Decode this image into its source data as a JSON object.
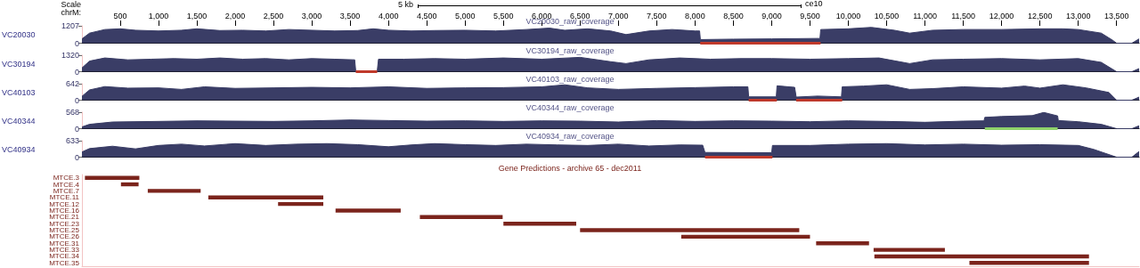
{
  "chart_data": [
    {
      "type": "area",
      "title": "VC20030_raw_coverage",
      "ylabel": "VC20030",
      "color": "#3a3d66",
      "xlim": [
        1,
        13794
      ],
      "ylim": [
        0,
        1207
      ],
      "yticks": [
        0,
        1207
      ],
      "xticks": [
        500,
        {
          "value": 1000,
          "label": "1,000"
        },
        {
          "value": 1500,
          "label": "1,500"
        },
        {
          "value": 2000,
          "label": "2,000"
        },
        {
          "value": 2500,
          "label": "2,500"
        },
        {
          "value": 3000,
          "label": "3,000"
        },
        {
          "value": 3500,
          "label": "3,500"
        },
        {
          "value": 4000,
          "label": "4,000"
        },
        {
          "value": 4500,
          "label": "4,500"
        },
        {
          "value": 5000,
          "label": "5,000"
        },
        {
          "value": 5500,
          "label": "5,500"
        },
        {
          "value": 6000,
          "label": "6,000"
        },
        {
          "value": 6500,
          "label": "6,500"
        },
        {
          "value": 7000,
          "label": "7,000"
        },
        {
          "value": 7500,
          "label": "7,500"
        },
        {
          "value": 8000,
          "label": "8,000"
        },
        {
          "value": 8500,
          "label": "8,500"
        },
        {
          "value": 9000,
          "label": "9,000"
        },
        {
          "value": 9500,
          "label": "9,500"
        },
        {
          "value": 10000,
          "label": "10,000"
        },
        {
          "value": 10500,
          "label": "10,500"
        },
        {
          "value": 11000,
          "label": "11,000"
        },
        {
          "value": 11500,
          "label": "11,500"
        },
        {
          "value": 12000,
          "label": "12,000"
        },
        {
          "value": 12500,
          "label": "12,500"
        },
        {
          "value": 13000,
          "label": "13,000"
        },
        {
          "value": 13500,
          "label": "13,500"
        }
      ],
      "annotations": [
        "Scale",
        "chrM:",
        "5 kb",
        "ce10"
      ],
      "x": [
        1,
        100,
        300,
        500,
        700,
        1000,
        1300,
        1500,
        1800,
        2100,
        2400,
        2700,
        3000,
        3300,
        3600,
        3800,
        4000,
        4300,
        4600,
        5000,
        5400,
        5800,
        6100,
        6300,
        6600,
        6900,
        7100,
        7400,
        7700,
        8000,
        8060,
        8070,
        8500,
        9000,
        9600,
        9630,
        9640,
        10000,
        10300,
        10600,
        10800,
        11100,
        11500,
        12000,
        12500,
        12800,
        13000,
        13300,
        13450,
        13500,
        13700,
        13794
      ],
      "values": [
        300,
        700,
        950,
        1000,
        900,
        850,
        900,
        1000,
        880,
        900,
        850,
        950,
        900,
        850,
        880,
        1000,
        900,
        850,
        880,
        900,
        850,
        950,
        1050,
        900,
        1000,
        850,
        600,
        850,
        950,
        850,
        850,
        250,
        280,
        300,
        330,
        330,
        950,
        1000,
        1100,
        900,
        700,
        900,
        950,
        950,
        1000,
        1000,
        950,
        700,
        200,
        0,
        0,
        300
      ],
      "series": [
        {
          "type": "line",
          "color": "#c0392b",
          "x": [
            8068,
            9638
          ],
          "values": [
            0,
            0
          ]
        }
      ]
    },
    {
      "type": "area",
      "title": "VC30194_raw_coverage",
      "ylabel": "VC30194",
      "color": "#3a3d66",
      "xlim": [
        1,
        13794
      ],
      "ylim": [
        0,
        1320
      ],
      "yticks": [
        0,
        1320
      ],
      "tick_labels": "y",
      "x": [
        1,
        100,
        300,
        600,
        900,
        1200,
        1500,
        1800,
        2100,
        2400,
        2700,
        3000,
        3300,
        3560,
        3574,
        3853,
        3870,
        4200,
        4600,
        5000,
        5500,
        6000,
        6500,
        6900,
        7100,
        7400,
        7800,
        8200,
        8600,
        9000,
        9500,
        10000,
        10400,
        10800,
        11100,
        11500,
        12000,
        12500,
        13000,
        13300,
        13500,
        13700,
        13794
      ],
      "values": [
        300,
        850,
        1100,
        950,
        1000,
        1050,
        1000,
        1100,
        1000,
        1050,
        950,
        1050,
        1000,
        950,
        0,
        0,
        1000,
        1000,
        1050,
        1000,
        1100,
        1000,
        1150,
        800,
        650,
        950,
        1100,
        1000,
        1050,
        1050,
        1000,
        1050,
        1100,
        650,
        950,
        1000,
        1050,
        950,
        1050,
        750,
        0,
        0,
        250
      ],
      "series": [
        {
          "type": "line",
          "color": "#c0392b",
          "x": [
            3574,
            3853
          ],
          "values": [
            0,
            0
          ]
        }
      ]
    },
    {
      "type": "area",
      "title": "VC40103_raw_coverage",
      "ylabel": "VC40103",
      "color": "#3a3d66",
      "xlim": [
        1,
        13794
      ],
      "ylim": [
        0,
        642
      ],
      "yticks": [
        0,
        642
      ],
      "tick_labels": "y",
      "x": [
        1,
        100,
        300,
        600,
        1000,
        1300,
        1600,
        2000,
        2500,
        3000,
        3500,
        4000,
        4500,
        5000,
        5500,
        6000,
        6300,
        6600,
        7000,
        7500,
        8000,
        8500,
        8690,
        8700,
        9060,
        9070,
        9300,
        9320,
        9600,
        9910,
        9920,
        10200,
        10500,
        10800,
        11100,
        11500,
        12000,
        12300,
        12500,
        12800,
        13100,
        13400,
        13500,
        13700,
        13794
      ],
      "values": [
        150,
        400,
        530,
        470,
        480,
        420,
        520,
        460,
        480,
        500,
        480,
        520,
        460,
        480,
        490,
        520,
        600,
        480,
        420,
        460,
        490,
        520,
        520,
        130,
        130,
        560,
        500,
        120,
        160,
        130,
        520,
        550,
        600,
        420,
        450,
        520,
        470,
        550,
        470,
        600,
        480,
        300,
        0,
        0,
        120
      ],
      "series": [
        {
          "type": "line",
          "color": "#c0392b",
          "x": [
            8700,
            9068,
            9190,
            9319,
            9920
          ],
          "values": [
            0,
            0,
            null,
            0,
            0
          ]
        }
      ]
    },
    {
      "type": "area",
      "title": "VC40344_raw_coverage",
      "ylabel": "VC40344",
      "color": "#3a3d66",
      "xlim": [
        1,
        13794
      ],
      "ylim": [
        0,
        568
      ],
      "yticks": [
        0,
        568
      ],
      "tick_labels": "y",
      "x": [
        1,
        100,
        400,
        1000,
        1500,
        2000,
        2500,
        3000,
        3500,
        4000,
        4500,
        5000,
        5500,
        6000,
        6500,
        7000,
        7500,
        8000,
        8500,
        9000,
        9500,
        10000,
        10500,
        11000,
        11500,
        11770,
        11781,
        12000,
        12400,
        12550,
        12731,
        12740,
        13000,
        13300,
        13500,
        13700,
        13794
      ],
      "values": [
        60,
        150,
        230,
        250,
        270,
        260,
        250,
        270,
        300,
        280,
        260,
        270,
        250,
        270,
        260,
        230,
        280,
        250,
        270,
        260,
        240,
        270,
        250,
        220,
        260,
        270,
        390,
        420,
        450,
        560,
        440,
        280,
        240,
        150,
        0,
        0,
        100
      ],
      "series": [
        {
          "type": "line",
          "color": "#8fd16a",
          "x": [
            11781,
            12731
          ],
          "values": [
            0,
            0
          ]
        }
      ]
    },
    {
      "type": "area",
      "title": "VC40934_raw_coverage",
      "ylabel": "VC40934",
      "color": "#3a3d66",
      "xlim": [
        1,
        13794
      ],
      "ylim": [
        0,
        633
      ],
      "yticks": [
        0,
        633
      ],
      "tick_labels": "y",
      "x": [
        1,
        100,
        400,
        700,
        1000,
        1300,
        1600,
        2000,
        2400,
        2800,
        3200,
        3600,
        4000,
        4300,
        4600,
        5000,
        5400,
        5800,
        6200,
        6600,
        7000,
        7400,
        7800,
        8100,
        8130,
        9000,
        9010,
        9500,
        10000,
        10500,
        11000,
        11500,
        12000,
        12500,
        13000,
        13200,
        13500,
        13700,
        13794
      ],
      "values": [
        200,
        330,
        420,
        320,
        450,
        500,
        430,
        520,
        450,
        500,
        520,
        480,
        400,
        470,
        520,
        480,
        450,
        500,
        470,
        450,
        500,
        430,
        470,
        460,
        180,
        170,
        450,
        450,
        500,
        520,
        470,
        500,
        460,
        480,
        450,
        300,
        0,
        0,
        220
      ],
      "series": [
        {
          "type": "line",
          "color": "#c0392b",
          "x": [
            8130,
            9010
          ],
          "values": [
            0,
            0
          ]
        }
      ]
    },
    {
      "type": "bar",
      "orientation": "horizontal",
      "title": "Gene Predictions - archive 65 - dec2011",
      "color": "#7b241c",
      "xlim": [
        1,
        13794
      ],
      "tick_labels": "y",
      "categories": [
        "MTCE.3",
        "MTCE.4",
        "MTCE.7",
        "MTCE.11",
        "MTCE.12",
        "MTCE.16",
        "MTCE.21",
        "MTCE.23",
        "MTCE.25",
        "MTCE.26",
        "MTCE.31",
        "MTCE.33",
        "MTCE.34",
        "MTCE.35"
      ],
      "base": [
        40,
        510,
        860,
        1650,
        2560,
        3310,
        4410,
        5500,
        6500,
        7820,
        9580,
        10330,
        10340,
        11580
      ],
      "values": [
        710,
        230,
        690,
        1500,
        590,
        850,
        1080,
        950,
        2860,
        1680,
        690,
        930,
        2800,
        1560
      ]
    }
  ]
}
